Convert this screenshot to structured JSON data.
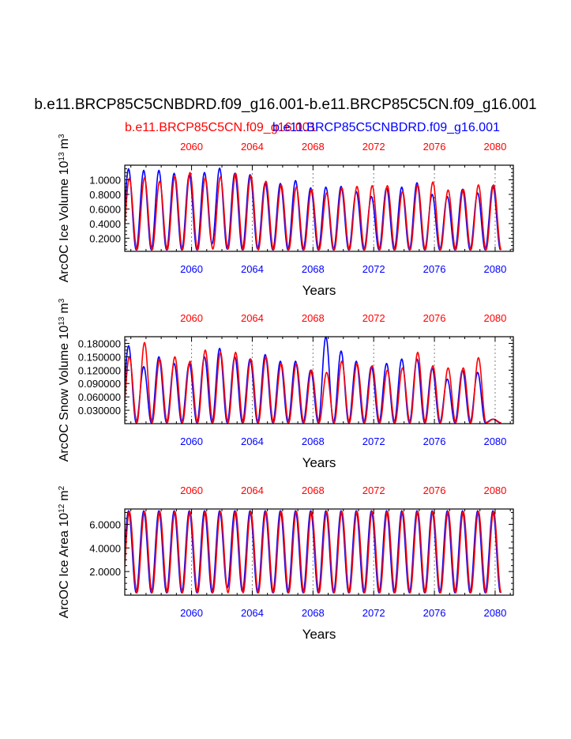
{
  "title": "b.e11.BRCP85C5CNBDRD.f09_g16.001-b.e11.BRCP85C5CN.f09_g16.001",
  "legend": {
    "red_label": "b.e11.BRCP85C5CN.f09_g16.001",
    "blue_label": "b.e11.BRCP85C5CNBDRD.f09_g16.001"
  },
  "colors": {
    "series_a": "#0000ff",
    "series_b": "#ff0000",
    "axis": "#000000",
    "gridline": "#808080"
  },
  "chart_data": [
    {
      "type": "line",
      "name": "ice-volume",
      "ylabel": "ArcOC Ice Volume 10",
      "ylabel_exp": "13",
      "ylabel_unit": "m",
      "ylabel_unit_exp": "3",
      "xlabel": "Years",
      "xlim": [
        2055.6,
        2081.2
      ],
      "ylim": [
        0.02,
        1.2
      ],
      "yticks": [
        0.2,
        0.4,
        0.6,
        0.8,
        1.0
      ],
      "ytick_labels": [
        "0.2000",
        "0.4000",
        "0.6000",
        "0.8000",
        "1.0000"
      ],
      "xticks": [
        2060,
        2064,
        2068,
        2072,
        2076,
        2080
      ],
      "xtick_labels": [
        "2060",
        "2064",
        "2068",
        "2072",
        "2076",
        "2080"
      ],
      "year_start": 2056,
      "series": [
        {
          "name": "b.e11.BRCP85C5CNBDRD.f09_g16.001",
          "color": "#0000ff",
          "max": [
            1.15,
            1.13,
            1.13,
            1.09,
            1.07,
            1.1,
            1.16,
            1.09,
            1.07,
            0.96,
            0.95,
            0.99,
            0.89,
            0.9,
            0.91,
            0.84,
            0.77,
            0.89,
            0.9,
            0.96,
            0.8,
            0.77,
            0.87,
            0.82,
            0.92
          ],
          "min": [
            0.04,
            0.04,
            0.04,
            0.04,
            0.04,
            0.04,
            0.12,
            0.05,
            0.04,
            0.05,
            0.04,
            0.04,
            0.04,
            0.04,
            0.04,
            0.04,
            0.04,
            0.04,
            0.04,
            0.04,
            0.04,
            0.04,
            0.04,
            0.04,
            0.04
          ]
        },
        {
          "name": "b.e11.BRCP85C5CN.f09_g16.001",
          "color": "#ff0000",
          "max": [
            1.02,
            1.03,
            0.98,
            1.05,
            1.1,
            1.03,
            1.04,
            1.09,
            1.06,
            0.98,
            0.93,
            0.9,
            0.87,
            0.82,
            0.89,
            0.91,
            0.92,
            0.92,
            0.84,
            0.93,
            0.97,
            0.86,
            0.87,
            0.93,
            0.93
          ],
          "min": [
            0.04,
            0.04,
            0.04,
            0.04,
            0.04,
            0.04,
            0.05,
            0.05,
            0.04,
            0.04,
            0.04,
            0.04,
            0.04,
            0.04,
            0.04,
            0.04,
            0.04,
            0.04,
            0.04,
            0.04,
            0.04,
            0.04,
            0.04,
            0.04,
            0.04
          ]
        }
      ]
    },
    {
      "type": "line",
      "name": "snow-volume",
      "ylabel": "ArcOC Snow Volume 10",
      "ylabel_exp": "13",
      "ylabel_unit": "m",
      "ylabel_unit_exp": "3",
      "xlabel": "Years",
      "xlim": [
        2055.6,
        2081.2
      ],
      "ylim": [
        0.0,
        0.195
      ],
      "yticks": [
        0.03,
        0.06,
        0.09,
        0.12,
        0.15,
        0.18
      ],
      "ytick_labels": [
        "0.030000",
        "0.060000",
        "0.090000",
        "0.120000",
        "0.150000",
        "0.180000"
      ],
      "xticks": [
        2060,
        2064,
        2068,
        2072,
        2076,
        2080
      ],
      "xtick_labels": [
        "2060",
        "2064",
        "2068",
        "2072",
        "2076",
        "2080"
      ],
      "year_start": 2056,
      "series": [
        {
          "name": "b.e11.BRCP85C5CNBDRD.f09_g16.001",
          "color": "#0000ff",
          "max": [
            0.175,
            0.128,
            0.15,
            0.135,
            0.135,
            0.15,
            0.169,
            0.15,
            0.145,
            0.155,
            0.14,
            0.14,
            0.12,
            0.195,
            0.163,
            0.14,
            0.128,
            0.135,
            0.145,
            0.145,
            0.125,
            0.1,
            0.12,
            0.115,
            0.01
          ],
          "min": [
            0.002,
            0.002,
            0.002,
            0.002,
            0.002,
            0.002,
            0.002,
            0.002,
            0.002,
            0.002,
            0.002,
            0.002,
            0.002,
            0.002,
            0.002,
            0.002,
            0.002,
            0.002,
            0.002,
            0.002,
            0.002,
            0.002,
            0.002,
            0.002,
            0.002
          ]
        },
        {
          "name": "b.e11.BRCP85C5CN.f09_g16.001",
          "color": "#ff0000",
          "max": [
            0.15,
            0.182,
            0.145,
            0.15,
            0.14,
            0.165,
            0.16,
            0.16,
            0.145,
            0.15,
            0.135,
            0.135,
            0.12,
            0.115,
            0.14,
            0.135,
            0.13,
            0.12,
            0.125,
            0.16,
            0.13,
            0.125,
            0.125,
            0.148,
            0.01
          ],
          "min": [
            0.002,
            0.002,
            0.002,
            0.002,
            0.002,
            0.002,
            0.002,
            0.002,
            0.002,
            0.002,
            0.002,
            0.002,
            0.002,
            0.002,
            0.002,
            0.002,
            0.002,
            0.002,
            0.002,
            0.002,
            0.002,
            0.002,
            0.002,
            0.002,
            0.002
          ]
        }
      ]
    },
    {
      "type": "line",
      "name": "ice-area",
      "ylabel": "ArcOC Ice Area 10",
      "ylabel_exp": "12",
      "ylabel_unit": "m",
      "ylabel_unit_exp": "2",
      "xlabel": "Years",
      "xlim": [
        2055.6,
        2081.2
      ],
      "ylim": [
        0.0,
        7.3
      ],
      "yticks": [
        2.0,
        4.0,
        6.0
      ],
      "ytick_labels": [
        "2.0000",
        "4.0000",
        "6.0000"
      ],
      "xticks": [
        2060,
        2064,
        2068,
        2072,
        2076,
        2080
      ],
      "xtick_labels": [
        "2060",
        "2064",
        "2068",
        "2072",
        "2076",
        "2080"
      ],
      "year_start": 2056,
      "series": [
        {
          "name": "b.e11.BRCP85C5CNBDRD.f09_g16.001",
          "color": "#0000ff",
          "max": [
            7.15,
            7.15,
            7.15,
            7.15,
            7.15,
            7.15,
            7.15,
            7.15,
            7.15,
            7.15,
            7.15,
            7.15,
            7.15,
            7.15,
            7.15,
            7.15,
            7.15,
            7.15,
            7.15,
            7.15,
            7.15,
            7.15,
            7.15,
            7.15,
            7.15
          ],
          "min": [
            0.2,
            0.2,
            0.2,
            0.2,
            0.2,
            0.2,
            0.2,
            0.6,
            0.3,
            0.2,
            0.2,
            0.2,
            0.2,
            0.2,
            0.2,
            0.2,
            0.2,
            0.2,
            0.2,
            0.2,
            0.2,
            0.2,
            0.2,
            0.2,
            0.2
          ]
        },
        {
          "name": "b.e11.BRCP85C5CN.f09_g16.001",
          "color": "#ff0000",
          "max": [
            7.1,
            7.1,
            7.1,
            7.1,
            7.1,
            7.1,
            7.1,
            7.1,
            7.1,
            7.1,
            7.1,
            7.1,
            7.1,
            7.1,
            7.1,
            7.1,
            7.1,
            7.1,
            7.1,
            7.1,
            7.1,
            7.1,
            7.1,
            7.1,
            7.1
          ],
          "min": [
            0.2,
            0.2,
            0.2,
            0.2,
            0.2,
            0.2,
            0.2,
            0.2,
            0.2,
            0.2,
            0.2,
            0.2,
            0.2,
            0.2,
            0.2,
            0.2,
            0.2,
            0.2,
            0.2,
            0.2,
            0.2,
            0.2,
            0.2,
            0.2,
            0.2
          ]
        }
      ]
    }
  ]
}
